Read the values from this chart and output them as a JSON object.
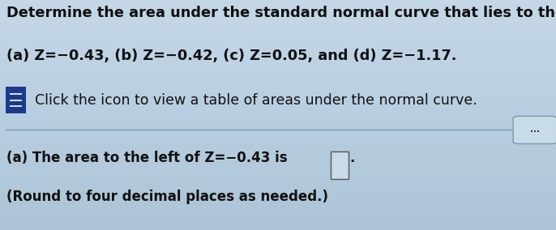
{
  "bg_color": "#b8cfe0",
  "bg_color_top": "#c5d8e8",
  "bg_color_bottom": "#adc4d8",
  "title_line1": "Determine the area under the standard normal curve that lies to the left of",
  "title_line2": "(a) Z=−0.43, (b) Z=−0.42, (c) Z=0.05, and (d) Z=−1.17.",
  "icon_text": "Click the icon to view a table of areas under the normal curve.",
  "bottom_line1": "(a) The area to the left of Z=−0.43 is",
  "bottom_line2": "(Round to four decimal places as needed.)",
  "dots_label": "...",
  "text_color": "#111111",
  "icon_color": "#1a3a8c",
  "font_size_main": 12.8,
  "font_size_bottom": 12.0
}
